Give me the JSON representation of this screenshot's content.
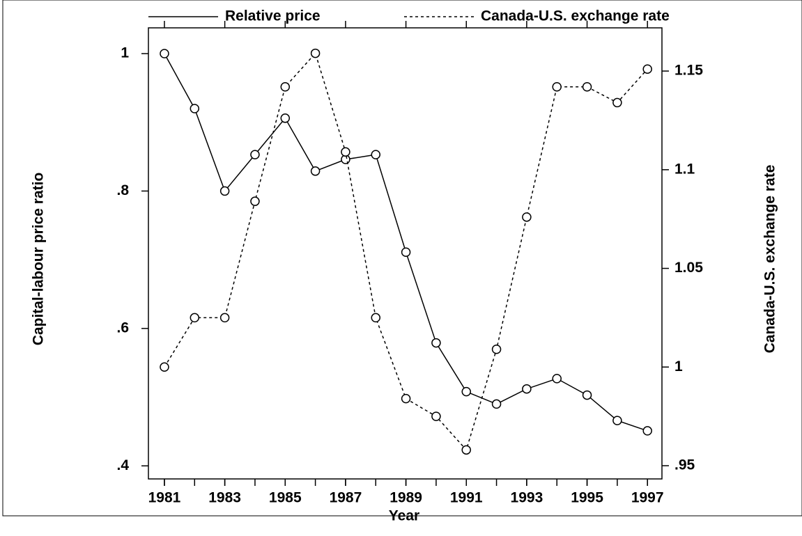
{
  "chart_data": {
    "type": "line",
    "x_label": "Year",
    "y_label": "Capital-labour price ratio",
    "y2_label": "Canada-U.S. exchange rate",
    "x": [
      1981,
      1982,
      1983,
      1984,
      1985,
      1986,
      1987,
      1988,
      1989,
      1990,
      1991,
      1992,
      1993,
      1994,
      1995,
      1996,
      1997
    ],
    "series": [
      {
        "name": "Relative price",
        "color": "#000000",
        "style": "solid",
        "values": [
          1.0,
          0.92,
          0.8,
          0.853,
          0.906,
          0.829,
          0.846,
          0.853,
          0.711,
          0.579,
          0.508,
          0.49,
          0.512,
          0.527,
          0.503,
          0.466,
          0.451
        ]
      },
      {
        "name": "Canada-U.S. exchange rate",
        "color": "#000000",
        "style": "dotted",
        "axis": "y2",
        "values": [
          1.0,
          1.025,
          1.025,
          1.084,
          1.142,
          1.159,
          1.109,
          1.025,
          0.984,
          0.975,
          0.958,
          1.009,
          1.076,
          1.142,
          1.142,
          1.134,
          1.151
        ]
      }
    ],
    "xlim": [
      1980.47,
      1997.48
    ],
    "xticks": [
      1981,
      1983,
      1985,
      1987,
      1989,
      1991,
      1993,
      1995,
      1997
    ],
    "ylim": [
      0.381,
      1.0375
    ],
    "yticks": [
      {
        "value": 0.4,
        "label": ".4"
      },
      {
        "value": 0.6,
        "label": ".6"
      },
      {
        "value": 0.8,
        "label": ".8"
      },
      1
    ],
    "y2lim": [
      0.9433,
      1.1719
    ],
    "y2ticks": [
      {
        "value": 0.95,
        "label": ".95"
      },
      1,
      {
        "value": 1.05,
        "label": "1.05"
      },
      {
        "value": 1.1,
        "label": "1.1"
      },
      {
        "value": 1.15,
        "label": "1.15"
      }
    ],
    "legend": "top"
  }
}
